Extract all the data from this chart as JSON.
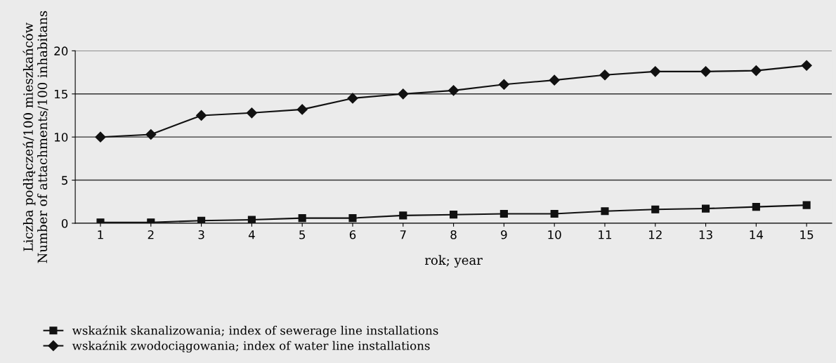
{
  "chart_data": {
    "type": "line",
    "xlabel": "rok; year",
    "ylabel": "Liczba podłączeń/100 mieszkańców\nNumber of attachments/100 inhabitans",
    "categories": [
      "1",
      "2",
      "3",
      "4",
      "5",
      "6",
      "7",
      "8",
      "9",
      "10",
      "11",
      "12",
      "13",
      "14",
      "15"
    ],
    "series": [
      {
        "name": "wskaźnik skanalizowania; index of sewerage line installations",
        "color": "#111111",
        "marker": "square",
        "values": [
          0.1,
          0.1,
          0.3,
          0.4,
          0.6,
          0.6,
          0.9,
          1.0,
          1.1,
          1.1,
          1.4,
          1.6,
          1.7,
          1.9,
          2.1
        ]
      },
      {
        "name": "wskaźnik zwodociągowania; index of water line installations",
        "color": "#111111",
        "marker": "diamond",
        "values": [
          10,
          10.3,
          12.5,
          12.8,
          13.2,
          14.5,
          15,
          15.4,
          16.1,
          16.6,
          17.2,
          17.6,
          17.6,
          17.7,
          18.3
        ]
      }
    ],
    "ylim": [
      0,
      20
    ],
    "yticks": [
      0,
      5,
      10,
      15,
      20
    ],
    "grid": "y",
    "legend": "bottom left",
    "line_style": "solid"
  }
}
